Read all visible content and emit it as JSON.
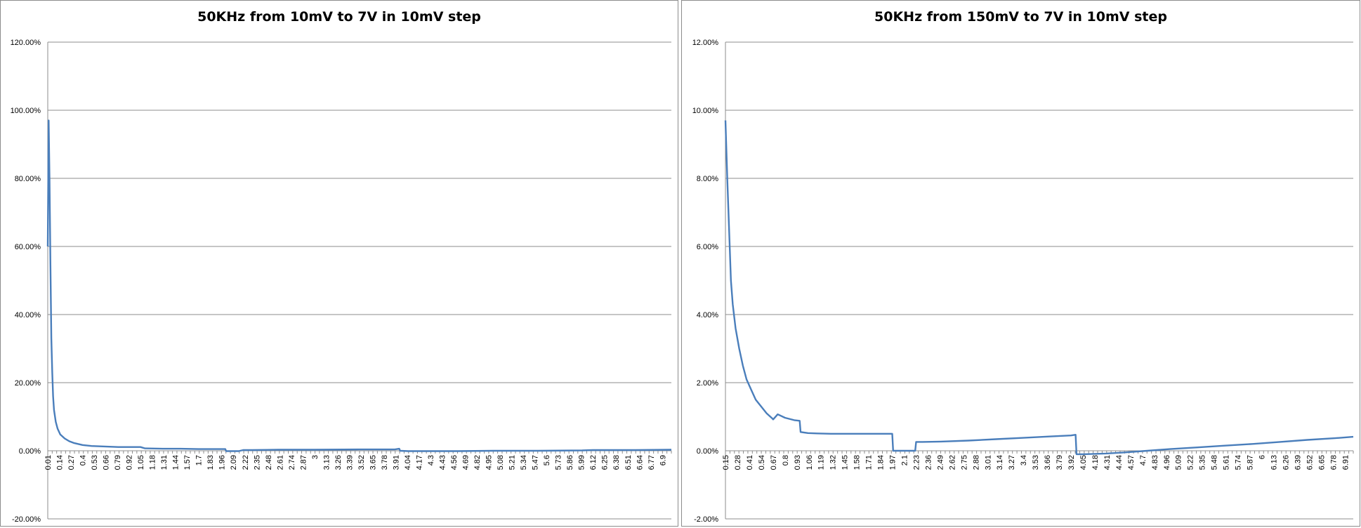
{
  "chart_data": [
    {
      "type": "line",
      "title": "50KHz from 10mV to 7V in 10mV step",
      "xlabel": "",
      "ylabel": "",
      "ylim": [
        -0.2,
        1.2
      ],
      "yticks": [
        "120.00%",
        "100.00%",
        "80.00%",
        "60.00%",
        "40.00%",
        "20.00%",
        "0.00%",
        "-20.00%"
      ],
      "ytick_values": [
        1.2,
        1.0,
        0.8,
        0.6,
        0.4,
        0.2,
        0.0,
        -0.2
      ],
      "xlim": [
        0.01,
        7.0
      ],
      "xticks": [
        "0.01",
        "0.14",
        "0.27",
        "0.4",
        "0.53",
        "0.66",
        "0.79",
        "0.92",
        "1.05",
        "1.18",
        "1.31",
        "1.44",
        "1.57",
        "1.7",
        "1.83",
        "1.96",
        "2.09",
        "2.22",
        "2.35",
        "2.48",
        "2.61",
        "2.74",
        "2.87",
        "3",
        "3.13",
        "3.26",
        "3.39",
        "3.52",
        "3.65",
        "3.78",
        "3.91",
        "4.04",
        "4.17",
        "4.3",
        "4.43",
        "4.56",
        "4.69",
        "4.82",
        "4.95",
        "5.08",
        "5.21",
        "5.34",
        "5.47",
        "5.6",
        "5.73",
        "5.86",
        "5.99",
        "6.12",
        "6.25",
        "6.38",
        "6.51",
        "6.64",
        "6.77",
        "6.9"
      ],
      "grid": true,
      "color": "#4a7ebb",
      "series": [
        {
          "x": [
            0.01,
            0.02,
            0.03,
            0.04,
            0.05,
            0.06,
            0.07,
            0.08,
            0.1,
            0.12,
            0.15,
            0.2,
            0.25,
            0.3,
            0.4,
            0.5,
            0.6,
            0.7,
            0.8,
            0.92,
            1.0,
            1.05,
            1.1,
            1.3,
            1.5,
            1.7,
            1.9,
            2.0,
            2.01,
            2.05,
            2.15,
            2.2,
            2.3,
            2.6,
            3.0,
            3.5,
            3.9,
            3.95,
            3.96,
            4.05,
            4.3,
            4.6,
            5.0,
            5.5,
            6.0,
            6.12,
            6.3,
            6.6,
            7.0
          ],
          "values": [
            0.6,
            0.97,
            0.8,
            0.55,
            0.33,
            0.23,
            0.16,
            0.12,
            0.085,
            0.065,
            0.048,
            0.036,
            0.028,
            0.023,
            0.017,
            0.014,
            0.013,
            0.012,
            0.011,
            0.011,
            0.011,
            0.011,
            0.007,
            0.006,
            0.006,
            0.005,
            0.005,
            0.005,
            -0.001,
            -0.001,
            -0.001,
            0.002,
            0.002,
            0.003,
            0.003,
            0.004,
            0.004,
            0.006,
            0.0,
            -0.001,
            -0.001,
            -0.001,
            0.0,
            0.0,
            0.001,
            0.002,
            0.002,
            0.002,
            0.003
          ]
        }
      ]
    },
    {
      "type": "line",
      "title": "50KHz from 150mV to 7V in 10mV step",
      "xlabel": "",
      "ylabel": "",
      "ylim": [
        -0.02,
        0.12
      ],
      "yticks": [
        "12.00%",
        "10.00%",
        "8.00%",
        "6.00%",
        "4.00%",
        "2.00%",
        "0.00%",
        "-2.00%"
      ],
      "ytick_values": [
        0.12,
        0.1,
        0.08,
        0.06,
        0.04,
        0.02,
        0.0,
        -0.02
      ],
      "xlim": [
        0.15,
        7.0
      ],
      "xticks": [
        "0.15",
        "0.28",
        "0.41",
        "0.54",
        "0.67",
        "0.8",
        "0.93",
        "1.06",
        "1.19",
        "1.32",
        "1.45",
        "1.58",
        "1.71",
        "1.84",
        "1.97",
        "2.1",
        "2.23",
        "2.36",
        "2.49",
        "2.62",
        "2.75",
        "2.88",
        "3.01",
        "3.14",
        "3.27",
        "3.4",
        "3.53",
        "3.66",
        "3.79",
        "3.92",
        "4.05",
        "4.18",
        "4.31",
        "4.44",
        "4.57",
        "4.7",
        "4.83",
        "4.96",
        "5.09",
        "5.22",
        "5.35",
        "5.48",
        "5.61",
        "5.74",
        "5.87",
        "6",
        "6.13",
        "6.26",
        "6.39",
        "6.52",
        "6.65",
        "6.78",
        "6.91"
      ],
      "grid": true,
      "color": "#4a7ebb",
      "series": [
        {
          "x": [
            0.15,
            0.17,
            0.19,
            0.21,
            0.23,
            0.26,
            0.3,
            0.34,
            0.38,
            0.43,
            0.48,
            0.54,
            0.6,
            0.66,
            0.67,
            0.72,
            0.8,
            0.9,
            0.96,
            0.97,
            1.05,
            1.15,
            1.3,
            1.5,
            1.7,
            1.9,
            1.97,
            1.98,
            2.1,
            2.2,
            2.22,
            2.23,
            2.3,
            2.5,
            2.8,
            3.1,
            3.4,
            3.7,
            3.92,
            3.97,
            3.98,
            4.05,
            4.3,
            4.5,
            4.7,
            5.0,
            5.3,
            5.6,
            5.9,
            6.2,
            6.5,
            6.8,
            7.0
          ],
          "values": [
            0.097,
            0.08,
            0.065,
            0.05,
            0.043,
            0.036,
            0.03,
            0.025,
            0.021,
            0.018,
            0.015,
            0.013,
            0.011,
            0.0095,
            0.0092,
            0.0107,
            0.0097,
            0.009,
            0.0088,
            0.0055,
            0.0052,
            0.0051,
            0.005,
            0.005,
            0.005,
            0.005,
            0.005,
            0.0,
            0.0,
            0.0,
            0.0,
            0.0026,
            0.0026,
            0.0027,
            0.003,
            0.0034,
            0.0038,
            0.0042,
            0.0045,
            0.0047,
            -0.001,
            -0.001,
            -0.0008,
            -0.0005,
            -0.0001,
            0.0005,
            0.001,
            0.0015,
            0.002,
            0.0026,
            0.0032,
            0.0037,
            0.0041
          ]
        }
      ]
    }
  ]
}
